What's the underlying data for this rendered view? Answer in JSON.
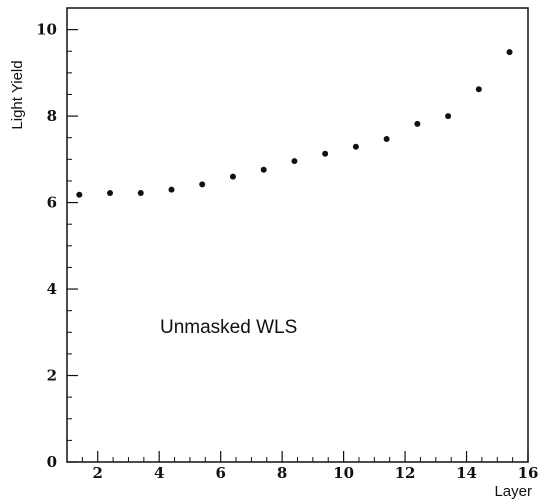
{
  "chart_data": {
    "type": "scatter",
    "title": "",
    "xlabel": "Layer",
    "ylabel": "Light Yield",
    "xlim": [
      1,
      16
    ],
    "ylim": [
      0,
      10.5
    ],
    "xticks": [
      2,
      4,
      6,
      8,
      10,
      12,
      14,
      16
    ],
    "yticks": [
      0,
      2,
      4,
      6,
      8,
      10
    ],
    "grid": false,
    "annotation": "Unmasked WLS",
    "series": [
      {
        "x": [
          1.4,
          2.4,
          3.4,
          4.4,
          5.4,
          6.4,
          7.4,
          8.4,
          9.4,
          10.4,
          11.4,
          12.4,
          13.4,
          14.4,
          15.4
        ],
        "y": [
          6.18,
          6.22,
          6.22,
          6.3,
          6.42,
          6.6,
          6.76,
          6.96,
          7.13,
          7.29,
          7.47,
          7.82,
          8.0,
          8.62,
          9.48
        ]
      }
    ]
  }
}
